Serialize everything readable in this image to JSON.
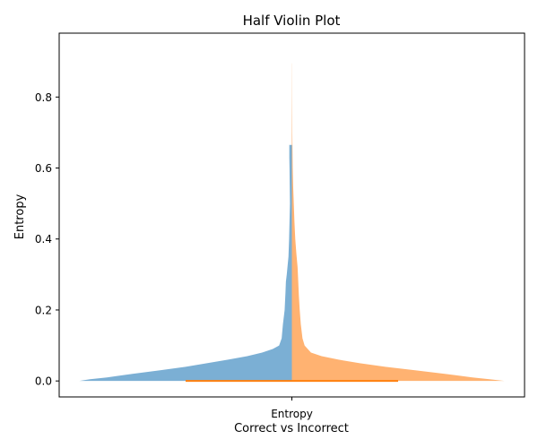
{
  "chart_data": {
    "type": "violin",
    "title": "Half Violin Plot",
    "xlabel": "Correct vs Incorrect",
    "ylabel": "Entropy",
    "categories": [
      "Entropy"
    ],
    "ylim": [
      -0.045,
      0.98
    ],
    "yticks": [
      "0.0",
      "0.2",
      "0.4",
      "0.6",
      "0.8"
    ],
    "grid": false,
    "colors": {
      "left": "#7bafd4",
      "right": "#ffb271",
      "median": "#ff7f0e",
      "spine": "#000000"
    },
    "series": [
      {
        "side": "left",
        "color": "#7bafd4",
        "max": 0.665,
        "profile": [
          [
            0.0,
            1.0
          ],
          [
            0.005,
            0.95
          ],
          [
            0.01,
            0.87
          ],
          [
            0.02,
            0.75
          ],
          [
            0.03,
            0.62
          ],
          [
            0.04,
            0.5
          ],
          [
            0.05,
            0.4
          ],
          [
            0.06,
            0.3
          ],
          [
            0.07,
            0.21
          ],
          [
            0.08,
            0.14
          ],
          [
            0.09,
            0.09
          ],
          [
            0.1,
            0.06
          ],
          [
            0.12,
            0.048
          ],
          [
            0.16,
            0.042
          ],
          [
            0.2,
            0.034
          ],
          [
            0.25,
            0.03
          ],
          [
            0.28,
            0.028
          ],
          [
            0.3,
            0.024
          ],
          [
            0.35,
            0.016
          ],
          [
            0.4,
            0.013
          ],
          [
            0.45,
            0.011
          ],
          [
            0.5,
            0.009
          ],
          [
            0.55,
            0.01
          ],
          [
            0.6,
            0.011
          ],
          [
            0.63,
            0.012
          ],
          [
            0.665,
            0.012
          ]
        ]
      },
      {
        "side": "right",
        "color": "#ffb271",
        "max": 0.895,
        "profile": [
          [
            0.0,
            1.0
          ],
          [
            0.005,
            0.93
          ],
          [
            0.01,
            0.85
          ],
          [
            0.02,
            0.72
          ],
          [
            0.03,
            0.58
          ],
          [
            0.04,
            0.44
          ],
          [
            0.05,
            0.32
          ],
          [
            0.06,
            0.22
          ],
          [
            0.07,
            0.14
          ],
          [
            0.08,
            0.09
          ],
          [
            0.1,
            0.06
          ],
          [
            0.12,
            0.05
          ],
          [
            0.16,
            0.042
          ],
          [
            0.2,
            0.037
          ],
          [
            0.24,
            0.033
          ],
          [
            0.28,
            0.03
          ],
          [
            0.32,
            0.027
          ],
          [
            0.36,
            0.021
          ],
          [
            0.4,
            0.016
          ],
          [
            0.45,
            0.012
          ],
          [
            0.5,
            0.009
          ],
          [
            0.55,
            0.006
          ],
          [
            0.6,
            0.004
          ],
          [
            0.7,
            0.002
          ],
          [
            0.8,
            0.001
          ],
          [
            0.895,
            0.0005
          ]
        ]
      }
    ],
    "median": 0.0
  }
}
